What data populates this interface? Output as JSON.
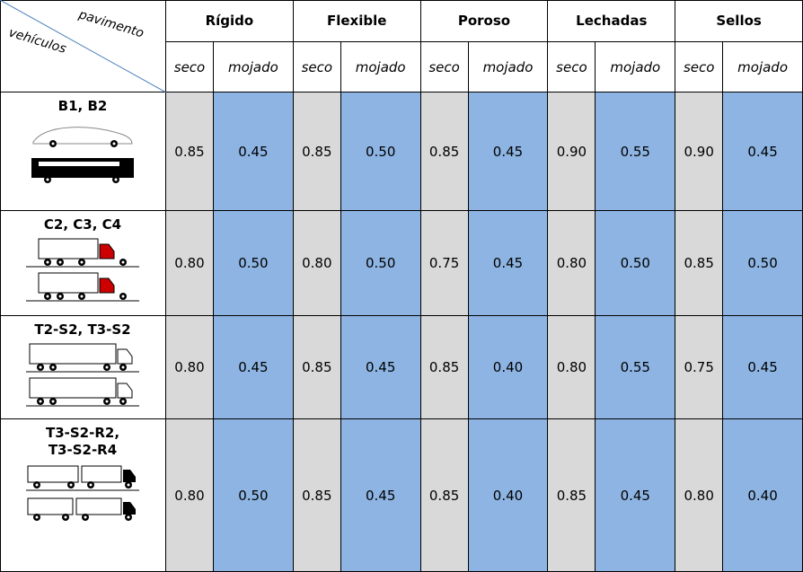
{
  "corner": {
    "top": "pavimento",
    "bottom": "vehículos"
  },
  "groups": [
    "Rígido",
    "Flexible",
    "Poroso",
    "Lechadas",
    "Sellos"
  ],
  "subheaders": [
    "seco",
    "mojado",
    "seco",
    "mojado",
    "seco",
    "mojado",
    "seco",
    "mojado",
    "seco",
    "mojado"
  ],
  "rows": [
    {
      "vehicle": [
        "B1, B2"
      ],
      "values": [
        "0.85",
        "0.45",
        "0.85",
        "0.50",
        "0.85",
        "0.45",
        "0.90",
        "0.55",
        "0.90",
        "0.45"
      ]
    },
    {
      "vehicle": [
        "C2, C3, C4"
      ],
      "values": [
        "0.80",
        "0.50",
        "0.80",
        "0.50",
        "0.75",
        "0.45",
        "0.80",
        "0.50",
        "0.85",
        "0.50"
      ]
    },
    {
      "vehicle": [
        "T2-S2, T3-S2"
      ],
      "values": [
        "0.80",
        "0.45",
        "0.85",
        "0.45",
        "0.85",
        "0.40",
        "0.80",
        "0.55",
        "0.75",
        "0.45"
      ]
    },
    {
      "vehicle": [
        "T3-S2-R2,",
        "T3-S2-R4"
      ],
      "values": [
        "0.80",
        "0.50",
        "0.85",
        "0.45",
        "0.85",
        "0.40",
        "0.85",
        "0.45",
        "0.80",
        "0.40"
      ]
    }
  ]
}
